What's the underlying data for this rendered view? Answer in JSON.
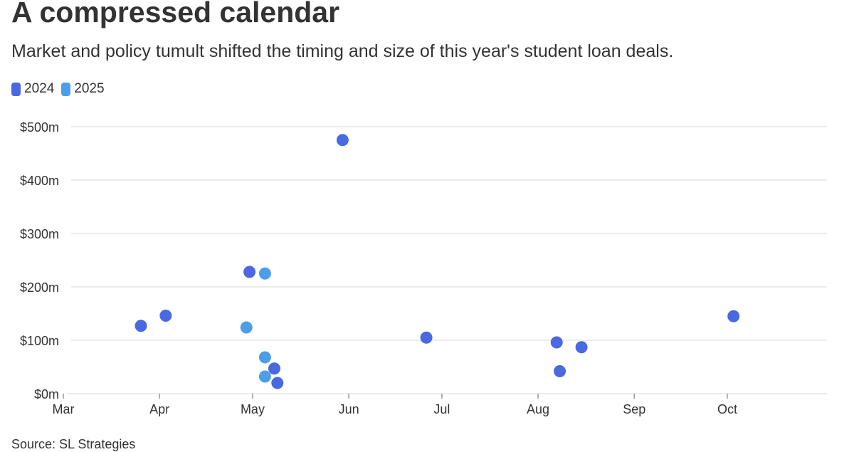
{
  "title": "A compressed calendar",
  "subtitle": "Market and policy tumult shifted the timing and size of this year's student loan deals.",
  "source": "Source: SL Strategies",
  "colors": {
    "2024": "#4a68e0",
    "2025": "#4d9ee8",
    "grid": "#e6e6e6",
    "axis": "#999999",
    "text": "#333333"
  },
  "chart_data": {
    "type": "scatter",
    "title": "A compressed calendar",
    "subtitle": "Market and policy tumult shifted the timing and size of this year's student loan deals.",
    "xlabel": "",
    "ylabel": "",
    "x_ticks": [
      "Mar",
      "Apr",
      "May",
      "Jun",
      "Jul",
      "Aug",
      "Sep",
      "Oct"
    ],
    "y_ticks": [
      "$0m",
      "$100m",
      "$200m",
      "$300m",
      "$400m",
      "$500m"
    ],
    "ylim": [
      0,
      500
    ],
    "xlim": [
      "Mar 1",
      "Oct 31"
    ],
    "grid": "horizontal",
    "legend": "top-left",
    "series": [
      {
        "name": "2024",
        "color": "#4a68e0",
        "points": [
          {
            "x": "Mar 26",
            "y": 127
          },
          {
            "x": "Apr 3",
            "y": 146
          },
          {
            "x": "Apr 30",
            "y": 228
          },
          {
            "x": "May 8",
            "y": 47
          },
          {
            "x": "May 9",
            "y": 20
          },
          {
            "x": "May 30",
            "y": 475
          },
          {
            "x": "Jun 26",
            "y": 105
          },
          {
            "x": "Aug 7",
            "y": 96
          },
          {
            "x": "Aug 8",
            "y": 42
          },
          {
            "x": "Aug 15",
            "y": 87
          },
          {
            "x": "Oct 3",
            "y": 145
          }
        ]
      },
      {
        "name": "2025",
        "color": "#4d9ee8",
        "points": [
          {
            "x": "Apr 29",
            "y": 124
          },
          {
            "x": "May 5",
            "y": 225
          },
          {
            "x": "May 5",
            "y": 68
          },
          {
            "x": "May 5",
            "y": 32
          }
        ]
      }
    ]
  }
}
